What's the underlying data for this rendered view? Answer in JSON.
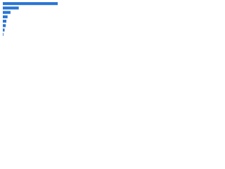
{
  "chart_data": {
    "type": "bar",
    "orientation": "horizontal",
    "categories": [
      null,
      null,
      null,
      null,
      null,
      null,
      null,
      null
    ],
    "values": [
      93,
      27,
      13,
      8,
      6,
      5,
      3,
      1
    ],
    "color": "#2a75d3",
    "xlim": [
      0,
      100
    ]
  }
}
